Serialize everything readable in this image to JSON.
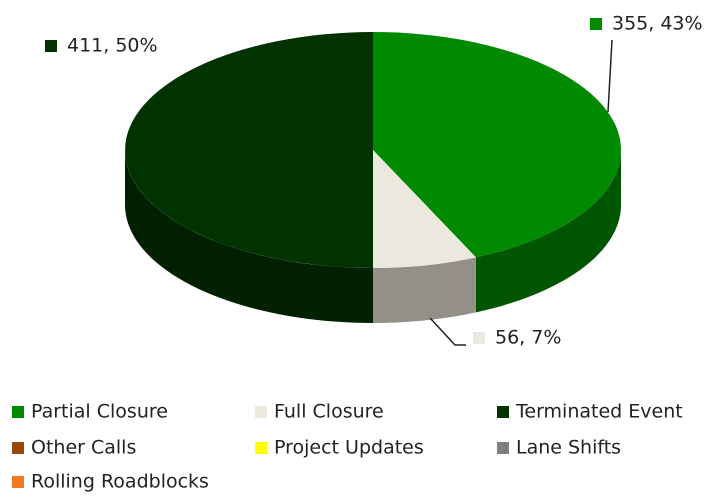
{
  "chart_data": {
    "type": "pie3d",
    "categories": [
      "Partial Closure",
      "Full Closure",
      "Terminated Event",
      "Other Calls",
      "Project Updates",
      "Lane Shifts",
      "Rolling Roadblocks"
    ],
    "values": [
      355,
      56,
      411,
      0,
      0,
      0,
      0
    ],
    "value_labels": [
      "355, 43%",
      "56, 7%",
      "411, 50%",
      null,
      null,
      null,
      null
    ],
    "colors": [
      "#008a00",
      "#ebe9dd",
      "#003300",
      "#974706",
      "#ffff00",
      "#808080",
      "#f07820"
    ],
    "legend": "bottom"
  }
}
